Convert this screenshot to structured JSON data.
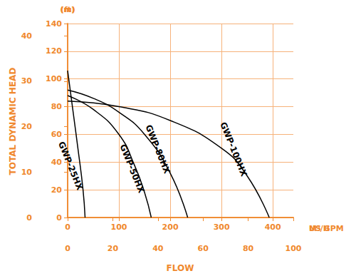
{
  "chart_data": {
    "type": "line",
    "y_label": "TOTAL DYNAMIC HEAD",
    "y_unit": "(ft)",
    "y2_unit": "(m)",
    "x_label": "FLOW",
    "x_unit": "US GPM",
    "x2_unit": "M³/H",
    "xlim": [
      0,
      440
    ],
    "xticks": [
      0,
      100,
      200,
      300,
      400
    ],
    "x2lim": [
      0,
      100
    ],
    "x2ticks": [
      0,
      20,
      40,
      60,
      80,
      100
    ],
    "ylim": [
      0,
      140
    ],
    "yticks": [
      0,
      20,
      40,
      60,
      80,
      100,
      120,
      140
    ],
    "y2lim": [
      0,
      42.67
    ],
    "y2ticks": [
      0,
      10,
      20,
      30,
      40
    ],
    "grid": true,
    "color": "#f0892e",
    "series": [
      {
        "name": "GWP-25HX",
        "color": "#000000",
        "x": [
          0,
          10,
          20,
          30,
          34
        ],
        "values": [
          106,
          78,
          50,
          20,
          0
        ]
      },
      {
        "name": "GWP-50HX",
        "color": "#000000",
        "x": [
          0,
          50,
          100,
          130,
          150,
          163
        ],
        "values": [
          88,
          78,
          60,
          38,
          18,
          0
        ]
      },
      {
        "name": "GWP-80HX",
        "color": "#000000",
        "x": [
          0,
          50,
          100,
          150,
          200,
          234
        ],
        "values": [
          92,
          86,
          76,
          60,
          32,
          0
        ]
      },
      {
        "name": "GWP-100HX",
        "color": "#000000",
        "x": [
          0,
          100,
          200,
          300,
          350,
          393
        ],
        "values": [
          84,
          80,
          70,
          50,
          30,
          0
        ]
      }
    ]
  }
}
